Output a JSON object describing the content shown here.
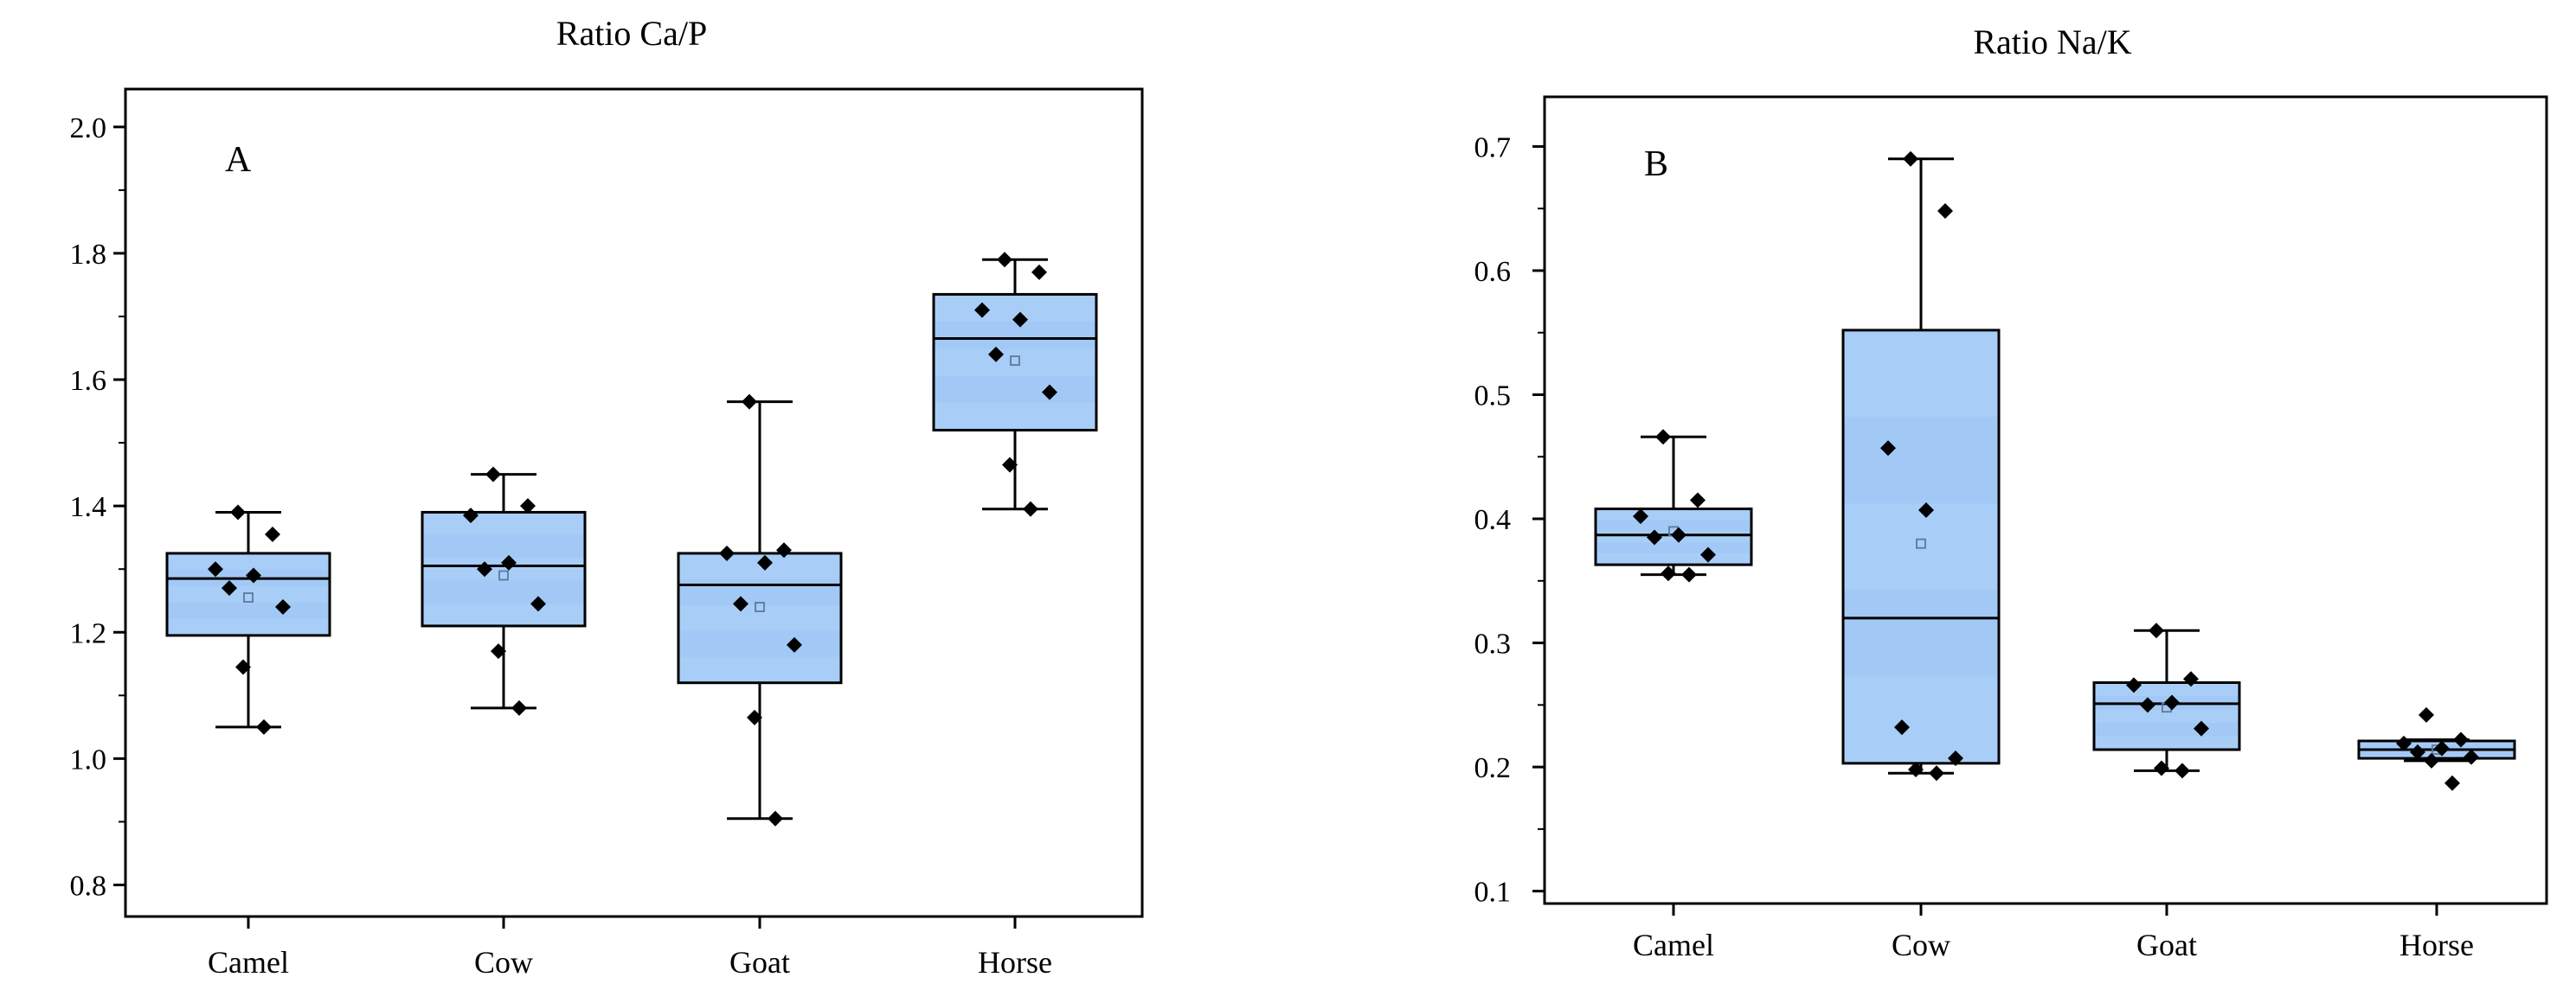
{
  "colors": {
    "box_fill": "#a8cdf7",
    "box_fill_dark": "#9cc6f5",
    "box_stroke": "#000000",
    "point": "#000000",
    "mean_marker": "#5b7a99",
    "axis": "#000000"
  },
  "chart_data": [
    {
      "type": "box",
      "title": "Ratio Ca/P",
      "panel_label": "A",
      "xlabel": "",
      "ylabel": "",
      "ylim": [
        0.75,
        2.06
      ],
      "yticks": [
        "0.8",
        "1.0",
        "1.2",
        "1.4",
        "1.6",
        "1.8",
        "2.0"
      ],
      "ytick_values": [
        0.8,
        1.0,
        1.2,
        1.4,
        1.6,
        1.8,
        2.0
      ],
      "categories": [
        "Camel",
        "Cow",
        "Goat",
        "Horse"
      ],
      "boxes": [
        {
          "category": "Camel",
          "min": 1.05,
          "q1": 1.195,
          "median": 1.285,
          "q3": 1.325,
          "max": 1.39,
          "mean": 1.255,
          "points": [
            1.39,
            1.355,
            1.3,
            1.29,
            1.27,
            1.24,
            1.145,
            1.05
          ]
        },
        {
          "category": "Cow",
          "min": 1.08,
          "q1": 1.21,
          "median": 1.305,
          "q3": 1.39,
          "max": 1.45,
          "mean": 1.29,
          "points": [
            1.45,
            1.4,
            1.385,
            1.31,
            1.3,
            1.245,
            1.17,
            1.08
          ]
        },
        {
          "category": "Goat",
          "min": 0.905,
          "q1": 1.12,
          "median": 1.275,
          "q3": 1.325,
          "max": 1.565,
          "mean": 1.24,
          "points": [
            1.565,
            1.33,
            1.325,
            1.31,
            1.245,
            1.18,
            1.065,
            0.905
          ]
        },
        {
          "category": "Horse",
          "min": 1.395,
          "q1": 1.52,
          "median": 1.665,
          "q3": 1.735,
          "max": 1.79,
          "mean": 1.63,
          "points": [
            1.79,
            1.77,
            1.71,
            1.695,
            1.64,
            1.58,
            1.465,
            1.395
          ]
        }
      ]
    },
    {
      "type": "box",
      "title": "Ratio Na/K",
      "panel_label": "B",
      "xlabel": "",
      "ylabel": "",
      "ylim": [
        0.09,
        0.74
      ],
      "yticks": [
        "0.1",
        "0.2",
        "0.3",
        "0.4",
        "0.5",
        "0.6",
        "0.7"
      ],
      "ytick_values": [
        0.1,
        0.2,
        0.3,
        0.4,
        0.5,
        0.6,
        0.7
      ],
      "categories": [
        "Camel",
        "Cow",
        "Goat",
        "Horse"
      ],
      "boxes": [
        {
          "category": "Camel",
          "min": 0.355,
          "q1": 0.363,
          "median": 0.387,
          "q3": 0.408,
          "max": 0.466,
          "mean": 0.39,
          "points": [
            0.466,
            0.415,
            0.402,
            0.387,
            0.385,
            0.371,
            0.356,
            0.355
          ]
        },
        {
          "category": "Cow",
          "min": 0.195,
          "q1": 0.203,
          "median": 0.32,
          "q3": 0.552,
          "max": 0.69,
          "mean": 0.38,
          "points": [
            0.69,
            0.648,
            0.457,
            0.407,
            0.232,
            0.207,
            0.198,
            0.195
          ]
        },
        {
          "category": "Goat",
          "min": 0.197,
          "q1": 0.214,
          "median": 0.251,
          "q3": 0.268,
          "max": 0.31,
          "mean": 0.248,
          "points": [
            0.31,
            0.271,
            0.266,
            0.252,
            0.25,
            0.231,
            0.199,
            0.197
          ]
        },
        {
          "category": "Horse",
          "min": 0.205,
          "q1": 0.207,
          "median": 0.214,
          "q3": 0.221,
          "max": 0.222,
          "mean": 0.214,
          "points": [
            0.242,
            0.222,
            0.219,
            0.215,
            0.212,
            0.208,
            0.205,
            0.187
          ]
        }
      ]
    }
  ]
}
